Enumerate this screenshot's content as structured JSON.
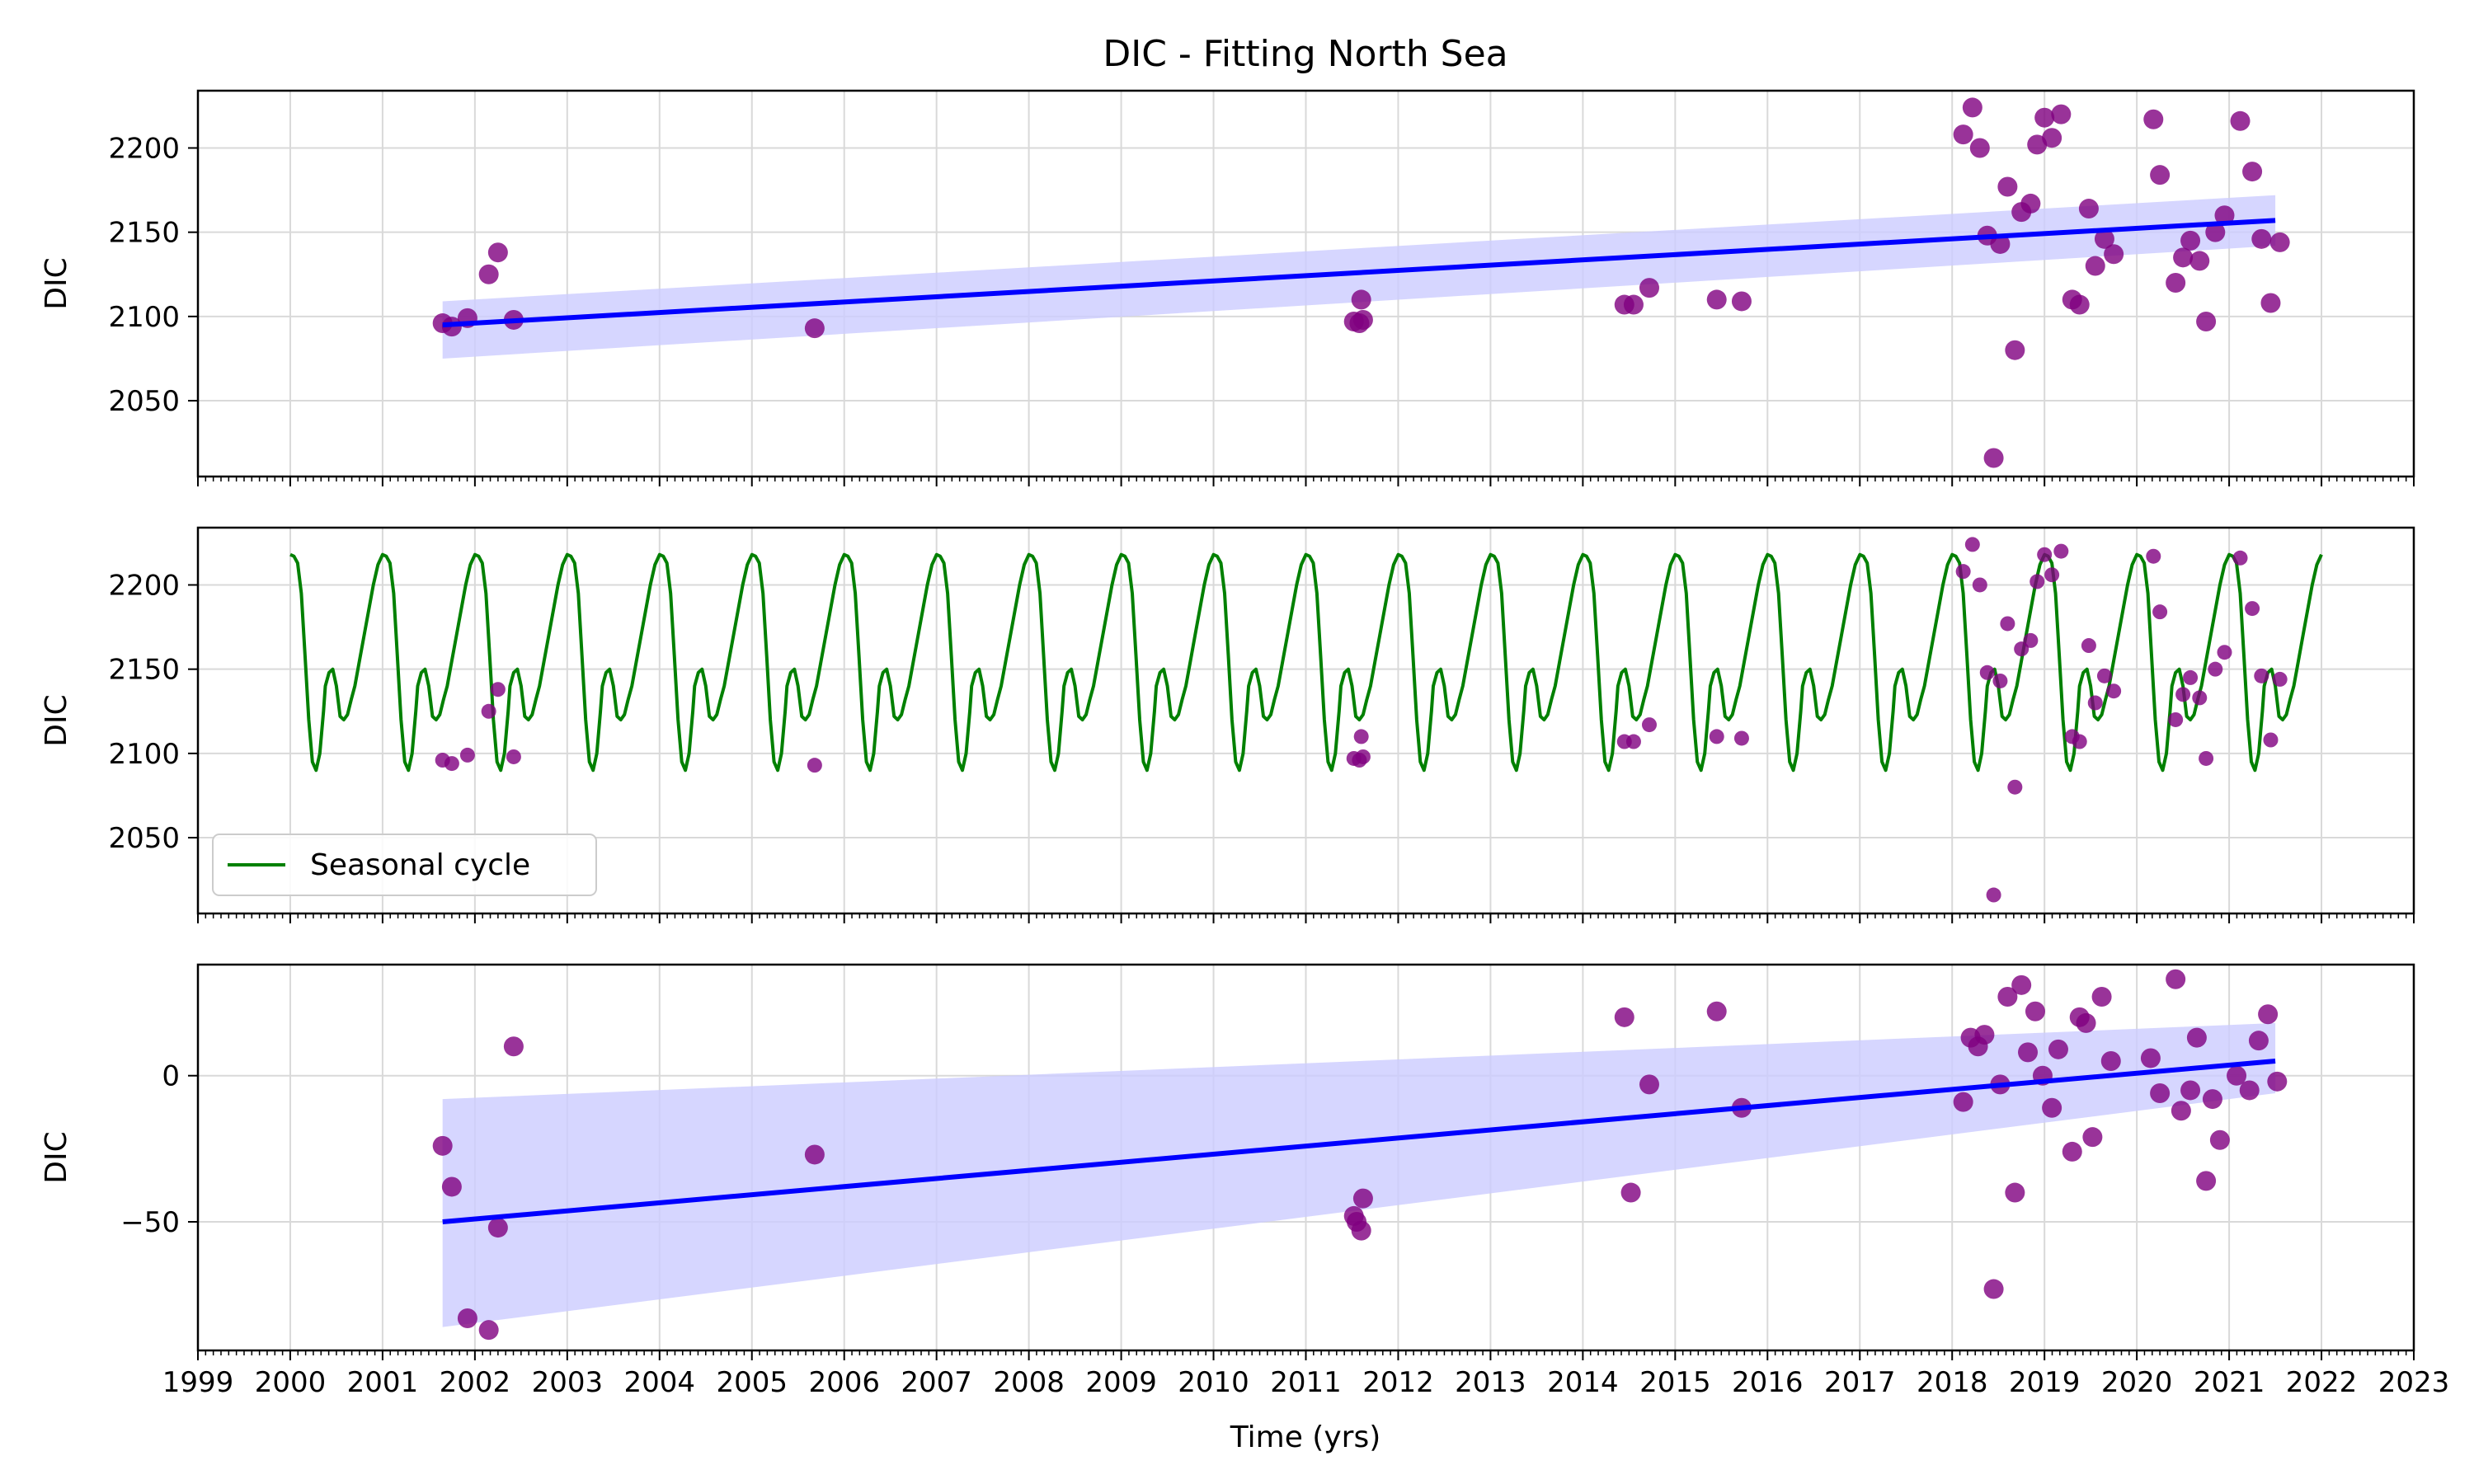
{
  "figure": {
    "title": "DIC - Fitting North Sea",
    "xlabel": "Time (yrs)"
  },
  "colors": {
    "points": "#800080",
    "trend": "#0000ff",
    "band": "#ccccff",
    "seasonal": "#008000",
    "grid": "#d9d9d9",
    "axis": "#000000"
  },
  "x_axis": {
    "range": [
      1999,
      2023
    ],
    "ticks": [
      1999,
      2000,
      2001,
      2002,
      2003,
      2004,
      2005,
      2006,
      2007,
      2008,
      2009,
      2010,
      2011,
      2012,
      2013,
      2014,
      2015,
      2016,
      2017,
      2018,
      2019,
      2020,
      2021,
      2022,
      2023
    ],
    "tick_labels": [
      "1999",
      "2000",
      "2001",
      "2002",
      "2003",
      "2004",
      "2005",
      "2006",
      "2007",
      "2008",
      "2009",
      "2010",
      "2011",
      "2012",
      "2013",
      "2014",
      "2015",
      "2016",
      "2017",
      "2018",
      "2019",
      "2020",
      "2021",
      "2022",
      "2023"
    ]
  },
  "chart_data": [
    {
      "type": "scatter",
      "ylabel": "DIC",
      "ylim": [
        2005,
        2234
      ],
      "yticks": [
        2050,
        2100,
        2150,
        2200
      ],
      "ytick_labels": [
        "2050",
        "2100",
        "2150",
        "2200"
      ],
      "grid": true,
      "trend": {
        "x": [
          2001.65,
          2021.5
        ],
        "y": [
          2095,
          2157
        ]
      },
      "band": {
        "x": [
          2001.65,
          2021.5
        ],
        "upper": [
          2109,
          2172
        ],
        "lower": [
          2075,
          2142
        ]
      },
      "points": [
        [
          2001.65,
          2096
        ],
        [
          2001.75,
          2094
        ],
        [
          2001.92,
          2099
        ],
        [
          2002.15,
          2125
        ],
        [
          2002.25,
          2138
        ],
        [
          2002.42,
          2098
        ],
        [
          2005.68,
          2093
        ],
        [
          2011.52,
          2097
        ],
        [
          2011.58,
          2096
        ],
        [
          2011.6,
          2110
        ],
        [
          2011.62,
          2098
        ],
        [
          2014.45,
          2107
        ],
        [
          2014.55,
          2107
        ],
        [
          2014.72,
          2117
        ],
        [
          2015.45,
          2110
        ],
        [
          2015.72,
          2109
        ],
        [
          2018.12,
          2208
        ],
        [
          2018.22,
          2224
        ],
        [
          2018.3,
          2200
        ],
        [
          2018.38,
          2148
        ],
        [
          2018.45,
          2016
        ],
        [
          2018.52,
          2143
        ],
        [
          2018.6,
          2177
        ],
        [
          2018.68,
          2080
        ],
        [
          2018.75,
          2162
        ],
        [
          2018.85,
          2167
        ],
        [
          2018.92,
          2202
        ],
        [
          2019.0,
          2218
        ],
        [
          2019.08,
          2206
        ],
        [
          2019.18,
          2220
        ],
        [
          2019.3,
          2110
        ],
        [
          2019.38,
          2107
        ],
        [
          2019.48,
          2164
        ],
        [
          2019.55,
          2130
        ],
        [
          2019.65,
          2146
        ],
        [
          2019.75,
          2137
        ],
        [
          2020.18,
          2217
        ],
        [
          2020.25,
          2184
        ],
        [
          2020.42,
          2120
        ],
        [
          2020.5,
          2135
        ],
        [
          2020.58,
          2145
        ],
        [
          2020.68,
          2133
        ],
        [
          2020.75,
          2097
        ],
        [
          2020.85,
          2150
        ],
        [
          2020.95,
          2160
        ],
        [
          2021.12,
          2216
        ],
        [
          2021.25,
          2186
        ],
        [
          2021.35,
          2146
        ],
        [
          2021.45,
          2108
        ],
        [
          2021.55,
          2144
        ]
      ]
    },
    {
      "type": "line",
      "ylabel": "DIC",
      "ylim": [
        2005,
        2234
      ],
      "yticks": [
        2050,
        2100,
        2150,
        2200
      ],
      "ytick_labels": [
        "2050",
        "2100",
        "2150",
        "2200"
      ],
      "grid": true,
      "legend_position": "lower-left",
      "series": [
        {
          "name": "Seasonal cycle",
          "x_range": [
            2000,
            2022
          ],
          "period": 1,
          "cycle_phase": [
            0,
            0.04,
            0.08,
            0.12,
            0.16,
            0.2,
            0.24,
            0.28,
            0.32,
            0.36,
            0.38,
            0.42,
            0.46,
            0.5,
            0.54,
            0.58,
            0.62,
            0.66,
            0.7,
            0.75,
            0.8,
            0.85,
            0.9,
            0.95,
            1.0
          ],
          "cycle_values": [
            2218,
            2217,
            2213,
            2195,
            2158,
            2120,
            2095,
            2090,
            2100,
            2125,
            2140,
            2148,
            2150,
            2140,
            2122,
            2120,
            2123,
            2132,
            2140,
            2155,
            2170,
            2185,
            2200,
            2212,
            2218
          ]
        }
      ],
      "points": [
        [
          2001.65,
          2096
        ],
        [
          2001.75,
          2094
        ],
        [
          2001.92,
          2099
        ],
        [
          2002.15,
          2125
        ],
        [
          2002.25,
          2138
        ],
        [
          2002.42,
          2098
        ],
        [
          2005.68,
          2093
        ],
        [
          2011.52,
          2097
        ],
        [
          2011.58,
          2096
        ],
        [
          2011.6,
          2110
        ],
        [
          2011.62,
          2098
        ],
        [
          2014.45,
          2107
        ],
        [
          2014.55,
          2107
        ],
        [
          2014.72,
          2117
        ],
        [
          2015.45,
          2110
        ],
        [
          2015.72,
          2109
        ],
        [
          2018.12,
          2208
        ],
        [
          2018.22,
          2224
        ],
        [
          2018.3,
          2200
        ],
        [
          2018.38,
          2148
        ],
        [
          2018.45,
          2016
        ],
        [
          2018.52,
          2143
        ],
        [
          2018.6,
          2177
        ],
        [
          2018.68,
          2080
        ],
        [
          2018.75,
          2162
        ],
        [
          2018.85,
          2167
        ],
        [
          2018.92,
          2202
        ],
        [
          2019.0,
          2218
        ],
        [
          2019.08,
          2206
        ],
        [
          2019.18,
          2220
        ],
        [
          2019.3,
          2110
        ],
        [
          2019.38,
          2107
        ],
        [
          2019.48,
          2164
        ],
        [
          2019.55,
          2130
        ],
        [
          2019.65,
          2146
        ],
        [
          2019.75,
          2137
        ],
        [
          2020.18,
          2217
        ],
        [
          2020.25,
          2184
        ],
        [
          2020.42,
          2120
        ],
        [
          2020.5,
          2135
        ],
        [
          2020.58,
          2145
        ],
        [
          2020.68,
          2133
        ],
        [
          2020.75,
          2097
        ],
        [
          2020.85,
          2150
        ],
        [
          2020.95,
          2160
        ],
        [
          2021.12,
          2216
        ],
        [
          2021.25,
          2186
        ],
        [
          2021.35,
          2146
        ],
        [
          2021.45,
          2108
        ],
        [
          2021.55,
          2144
        ]
      ]
    },
    {
      "type": "scatter",
      "ylabel": "DIC",
      "ylim": [
        -94,
        38
      ],
      "yticks": [
        -50,
        0
      ],
      "ytick_labels": [
        "−50",
        "0"
      ],
      "grid": true,
      "trend": {
        "x": [
          2001.65,
          2021.5
        ],
        "y": [
          -50,
          5
        ]
      },
      "band": {
        "x": [
          2001.65,
          2021.5
        ],
        "upper": [
          -8,
          18
        ],
        "lower": [
          -86,
          -6
        ]
      },
      "points": [
        [
          2001.65,
          -24
        ],
        [
          2001.75,
          -38
        ],
        [
          2001.92,
          -83
        ],
        [
          2002.15,
          -87
        ],
        [
          2002.25,
          -52
        ],
        [
          2002.42,
          10
        ],
        [
          2005.68,
          -27
        ],
        [
          2011.52,
          -48
        ],
        [
          2011.55,
          -50
        ],
        [
          2011.6,
          -53
        ],
        [
          2011.62,
          -42
        ],
        [
          2014.45,
          20
        ],
        [
          2014.52,
          -40
        ],
        [
          2014.72,
          -3
        ],
        [
          2015.45,
          22
        ],
        [
          2015.72,
          -11
        ],
        [
          2018.12,
          -9
        ],
        [
          2018.2,
          13
        ],
        [
          2018.28,
          10
        ],
        [
          2018.35,
          14
        ],
        [
          2018.45,
          -73
        ],
        [
          2018.52,
          -3
        ],
        [
          2018.6,
          27
        ],
        [
          2018.68,
          -40
        ],
        [
          2018.75,
          31
        ],
        [
          2018.82,
          8
        ],
        [
          2018.9,
          22
        ],
        [
          2018.98,
          0
        ],
        [
          2019.08,
          -11
        ],
        [
          2019.15,
          9
        ],
        [
          2019.3,
          -26
        ],
        [
          2019.38,
          20
        ],
        [
          2019.45,
          18
        ],
        [
          2019.52,
          -21
        ],
        [
          2019.62,
          27
        ],
        [
          2019.72,
          5
        ],
        [
          2020.15,
          6
        ],
        [
          2020.25,
          -6
        ],
        [
          2020.42,
          33
        ],
        [
          2020.48,
          -12
        ],
        [
          2020.58,
          -5
        ],
        [
          2020.65,
          13
        ],
        [
          2020.75,
          -36
        ],
        [
          2020.82,
          -8
        ],
        [
          2020.9,
          -22
        ],
        [
          2021.08,
          0
        ],
        [
          2021.22,
          -5
        ],
        [
          2021.32,
          12
        ],
        [
          2021.42,
          21
        ],
        [
          2021.52,
          -2
        ]
      ]
    }
  ]
}
